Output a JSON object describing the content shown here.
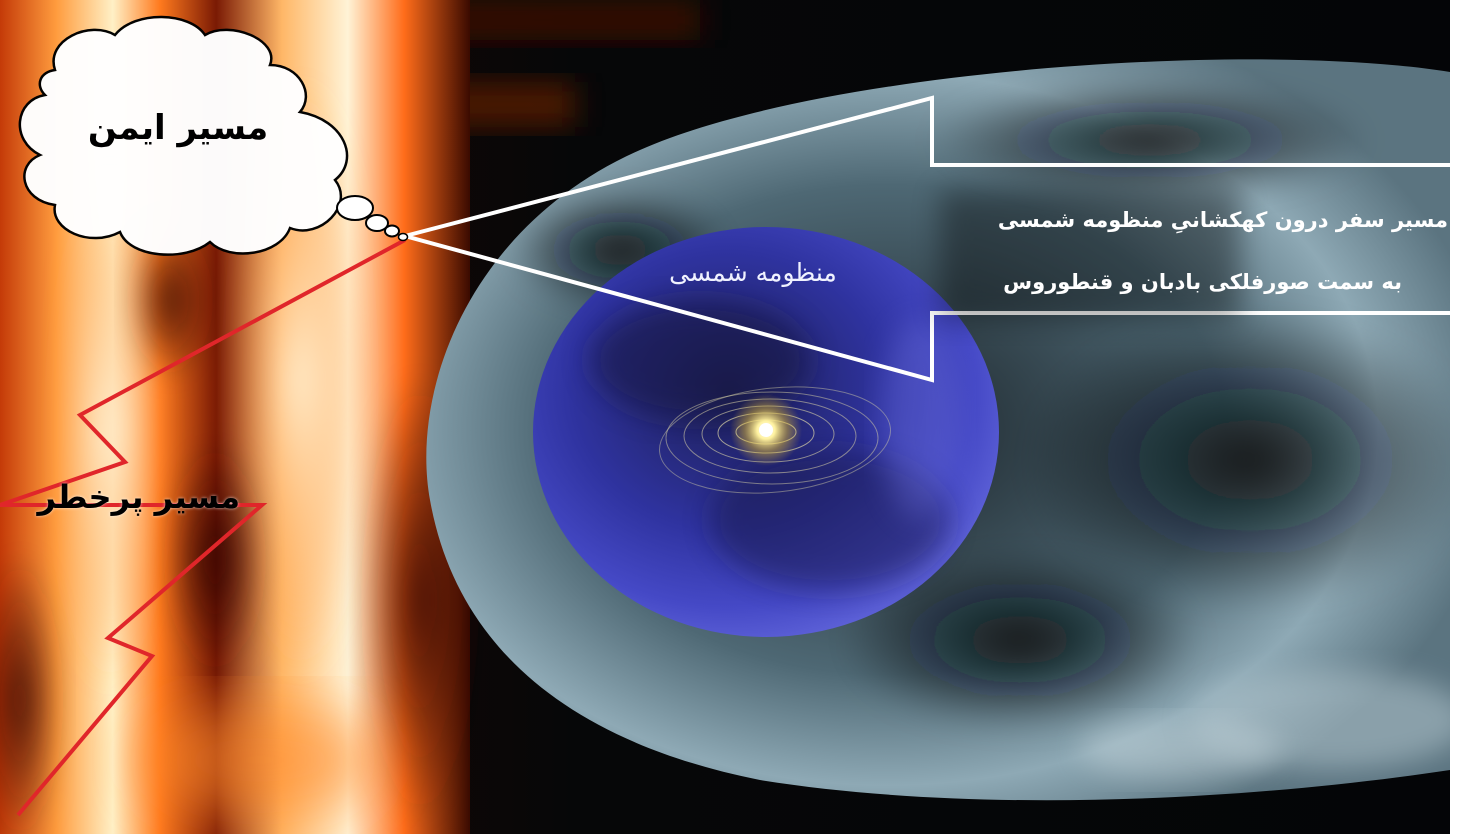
{
  "labels": {
    "safe_path": "مسیر ایمن",
    "dangerous_path": "مسیر پرخطر",
    "solar_system": "منظومه شمسی",
    "travel_path_line1": "مسیر سفر درون کهکشانیِ منظومه شمسی",
    "travel_path_line2": "به سمت صورفلکی بادبان و قنطوروس"
  },
  "colors": {
    "fire_core": "#fff1c8",
    "fire_mid": "#ff8a2a",
    "fire_dark": "#4a0d00",
    "space_black": "#050608",
    "heliosheath_gray": "#7f9aa6",
    "heliosphere_blue": "#3b3fb3",
    "sun_glow": "#fff2a0",
    "arrow_white": "#ffffff",
    "danger_red": "#e0262a"
  }
}
